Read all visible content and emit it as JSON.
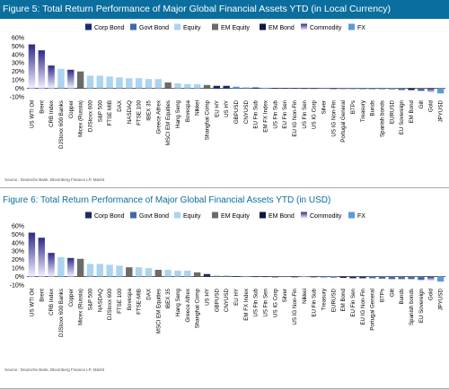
{
  "palette": {
    "corp_bond": "#1a2a6c",
    "govt_bond": "#4169a8",
    "equity": "#aad4ef",
    "em_equity": "#6b6b6b",
    "em_bond": "#0f1840",
    "commodity_top": "#2d2a8a",
    "commodity_bottom": "#f0f0ff",
    "fx": "#5b9bd5",
    "title_bar": "#0a6e9e"
  },
  "legend": [
    {
      "key": "corp_bond",
      "label": "Corp Bond"
    },
    {
      "key": "govt_bond",
      "label": "Govt Bond"
    },
    {
      "key": "equity",
      "label": "Equity"
    },
    {
      "key": "em_equity",
      "label": "EM Equity"
    },
    {
      "key": "em_bond",
      "label": "EM Bond"
    },
    {
      "key": "commodity",
      "label": "Commodity"
    },
    {
      "key": "fx",
      "label": "FX"
    }
  ],
  "figures": [
    {
      "title": "Figure 5: Total Return Performance of Major Global Financial Assets YTD (in Local Currency)",
      "source": "Source : Deutsche Bank, Bloomberg Finance LP, Markit"
    },
    {
      "title": "Figure 6: Total Return Performance of Major Global Financial Assets YTD (in USD)",
      "source": "Source : Deutsche Bank, Bloomberg Finance LP, Markit"
    }
  ],
  "chart_data": [
    {
      "type": "bar",
      "ylim": [
        -10,
        60
      ],
      "yticks": [
        "-10%",
        "0%",
        "10%",
        "20%",
        "30%",
        "40%",
        "50%",
        "60%"
      ],
      "categories": [
        "US WTI Oil",
        "Brent",
        "CRB Index",
        "DJStoxx 600 Banks",
        "Copper",
        "Micex (Russia)",
        "DJStoxx 600",
        "S&P 500",
        "FTSE MIB",
        "DAX",
        "NASDAQ",
        "FTSE 100",
        "IBEX 35",
        "Greece Athex",
        "MSCI EM Equities",
        "Hang Seng",
        "Bovespa",
        "Nikkei",
        "Shanghai Comp",
        "EU HY",
        "US HY",
        "GBPUSD",
        "CNYUSD",
        "EU Fin Sub",
        "EM FX Index",
        "US Fin Sub",
        "EU Fin Sen",
        "EU IG Non-Fin",
        "US Fin Sen",
        "US IG Corp",
        "Silver",
        "US IG Non-Fin",
        "Portugal General",
        "BTPs",
        "Treasury",
        "Bunds",
        "Spanish bonds",
        "EURUSD",
        "EU Sovereign",
        "EM Bond",
        "Gilt",
        "Gold",
        "JPYUSD"
      ],
      "groups": [
        "commodity",
        "commodity",
        "commodity",
        "equity",
        "commodity",
        "em_equity",
        "equity",
        "equity",
        "equity",
        "equity",
        "equity",
        "equity",
        "equity",
        "equity",
        "em_equity",
        "equity",
        "equity",
        "equity",
        "em_equity",
        "corp_bond",
        "corp_bond",
        "fx",
        "fx",
        "corp_bond",
        "fx",
        "corp_bond",
        "corp_bond",
        "corp_bond",
        "corp_bond",
        "corp_bond",
        "commodity",
        "corp_bond",
        "govt_bond",
        "govt_bond",
        "govt_bond",
        "govt_bond",
        "govt_bond",
        "fx",
        "govt_bond",
        "em_bond",
        "govt_bond",
        "commodity",
        "fx"
      ],
      "values": [
        52,
        45,
        27,
        23,
        22,
        20,
        15,
        15,
        14,
        13,
        12,
        12,
        11,
        11,
        7,
        6,
        5,
        5,
        4,
        3,
        3,
        2,
        1,
        1,
        0.5,
        0.5,
        0.3,
        0.3,
        0.2,
        0.2,
        -0.3,
        -0.3,
        -0.5,
        -0.5,
        -1,
        -1,
        -1,
        -1.5,
        -2,
        -2,
        -3,
        -5,
        -6
      ]
    },
    {
      "type": "bar",
      "ylim": [
        -10,
        60
      ],
      "yticks": [
        "-10%",
        "0%",
        "10%",
        "20%",
        "30%",
        "40%",
        "50%",
        "60%"
      ],
      "categories": [
        "US WTI Oil",
        "Brent",
        "CRB Index",
        "DJStoxx 600 Banks",
        "Copper",
        "Micex (Russia)",
        "S&P 500",
        "NASDAQ",
        "DJStoxx 600",
        "FTSE 100",
        "Bovespa",
        "FTSE-MIB",
        "DAX",
        "MSCI EM Equities",
        "IBEX 35",
        "Hang Seng",
        "Greece Athex",
        "Shanghai Comp",
        "US HY",
        "GBPUSD",
        "CNYUSD",
        "EU HY",
        "EM FX Index",
        "US Fin Sub",
        "US Fin Sen",
        "US IG Corp",
        "Silver",
        "US IG Non-Fin",
        "Nikkei",
        "EU Fin Sub",
        "Treasury",
        "EURUSD",
        "EM Bond",
        "EU Fin Sen",
        "EU IG Non-Fin",
        "Portugal General",
        "BTPs",
        "Gilt",
        "Bunds",
        "Spanish bonds",
        "EU Sovereign",
        "Gold",
        "JPYUSD"
      ],
      "groups": [
        "commodity",
        "commodity",
        "commodity",
        "equity",
        "commodity",
        "em_equity",
        "equity",
        "equity",
        "equity",
        "equity",
        "em_equity",
        "equity",
        "equity",
        "em_equity",
        "equity",
        "equity",
        "equity",
        "em_equity",
        "corp_bond",
        "fx",
        "fx",
        "corp_bond",
        "fx",
        "corp_bond",
        "corp_bond",
        "corp_bond",
        "commodity",
        "corp_bond",
        "equity",
        "corp_bond",
        "govt_bond",
        "fx",
        "em_bond",
        "corp_bond",
        "corp_bond",
        "govt_bond",
        "govt_bond",
        "govt_bond",
        "govt_bond",
        "govt_bond",
        "govt_bond",
        "commodity",
        "fx"
      ],
      "values": [
        52,
        46,
        28,
        23,
        22,
        21,
        15,
        15,
        14,
        13,
        11,
        11,
        10,
        8,
        8,
        7,
        7,
        5,
        3,
        1,
        1,
        0.5,
        0.3,
        0.3,
        0.3,
        -0.3,
        -0.3,
        -0.5,
        -0.5,
        -0.5,
        -1,
        -1.5,
        -1.5,
        -2,
        -2,
        -2,
        -2.5,
        -3,
        -3,
        -3,
        -4,
        -5,
        -6
      ]
    }
  ]
}
